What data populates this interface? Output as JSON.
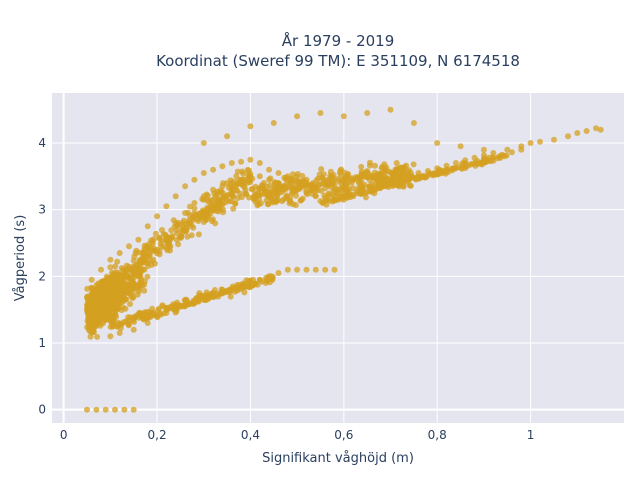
{
  "chart_data": {
    "type": "scatter",
    "title_line1": "År 1979 - 2019",
    "title_line2": "Koordinat (Sweref 99 TM): E 351109, N 6174518",
    "xlabel": "Signifikant våghöjd (m)",
    "ylabel": "Vågperiod (s)",
    "xlim": [
      -0.025,
      1.2
    ],
    "ylim": [
      -0.2,
      4.75
    ],
    "x_ticks": [
      0,
      0.2,
      0.4,
      0.6,
      0.8,
      1.0
    ],
    "x_tick_labels": [
      "0",
      "0,2",
      "0,4",
      "0,6",
      "0,8",
      "1"
    ],
    "y_ticks": [
      0,
      1,
      2,
      3,
      4
    ],
    "y_tick_labels": [
      "0",
      "1",
      "2",
      "3",
      "4"
    ],
    "grid": true,
    "legend": "none",
    "colors": {
      "marker": "#d4a020",
      "plot_bg": "#e5e5f0",
      "grid": "#ffffff",
      "text": "#2a3f5f"
    },
    "series": [
      {
        "points": [
          [
            0.05,
            1.52
          ],
          [
            0.06,
            1.6
          ],
          [
            0.07,
            1.75
          ],
          [
            0.06,
            1.95
          ],
          [
            0.08,
            2.1
          ],
          [
            0.1,
            2.25
          ],
          [
            0.12,
            2.35
          ],
          [
            0.14,
            2.45
          ],
          [
            0.16,
            2.55
          ],
          [
            0.18,
            2.75
          ],
          [
            0.2,
            2.9
          ],
          [
            0.22,
            3.05
          ],
          [
            0.24,
            3.2
          ],
          [
            0.26,
            3.35
          ],
          [
            0.28,
            3.45
          ],
          [
            0.3,
            3.55
          ],
          [
            0.32,
            3.6
          ],
          [
            0.34,
            3.65
          ],
          [
            0.36,
            3.7
          ],
          [
            0.38,
            3.72
          ],
          [
            0.4,
            3.75
          ],
          [
            0.42,
            3.7
          ],
          [
            0.44,
            3.6
          ],
          [
            0.46,
            3.55
          ],
          [
            0.48,
            3.5
          ],
          [
            0.5,
            3.45
          ],
          [
            0.52,
            3.4
          ],
          [
            0.54,
            3.35
          ],
          [
            0.56,
            3.32
          ],
          [
            0.58,
            3.3
          ],
          [
            0.6,
            3.3
          ],
          [
            0.62,
            3.32
          ],
          [
            0.64,
            3.35
          ],
          [
            0.66,
            3.38
          ],
          [
            0.68,
            3.42
          ],
          [
            0.7,
            3.45
          ],
          [
            0.72,
            3.48
          ],
          [
            0.74,
            3.52
          ],
          [
            0.76,
            3.55
          ],
          [
            0.78,
            3.58
          ],
          [
            0.8,
            3.62
          ],
          [
            0.82,
            3.66
          ],
          [
            0.84,
            3.7
          ],
          [
            0.86,
            3.74
          ],
          [
            0.88,
            3.78
          ],
          [
            0.9,
            3.82
          ],
          [
            0.92,
            3.85
          ],
          [
            0.95,
            3.9
          ],
          [
            0.98,
            3.95
          ],
          [
            1.0,
            4.0
          ],
          [
            1.05,
            4.05
          ],
          [
            1.1,
            4.15
          ],
          [
            1.15,
            4.2
          ],
          [
            0.3,
            4.0
          ],
          [
            0.35,
            4.1
          ],
          [
            0.4,
            4.25
          ],
          [
            0.45,
            4.3
          ],
          [
            0.5,
            4.4
          ],
          [
            0.55,
            4.45
          ],
          [
            0.6,
            4.4
          ],
          [
            0.65,
            4.45
          ],
          [
            0.7,
            4.5
          ],
          [
            0.75,
            4.3
          ],
          [
            0.8,
            4.0
          ],
          [
            0.85,
            3.95
          ],
          [
            0.9,
            3.9
          ],
          [
            0.1,
            1.1
          ],
          [
            0.12,
            1.15
          ],
          [
            0.15,
            1.2
          ],
          [
            0.18,
            1.3
          ],
          [
            0.2,
            1.4
          ],
          [
            0.22,
            1.45
          ],
          [
            0.24,
            1.5
          ],
          [
            0.26,
            1.55
          ],
          [
            0.28,
            1.6
          ],
          [
            0.3,
            1.65
          ],
          [
            0.32,
            1.7
          ],
          [
            0.34,
            1.75
          ],
          [
            0.36,
            1.8
          ],
          [
            0.38,
            1.85
          ],
          [
            0.4,
            1.9
          ],
          [
            0.42,
            1.95
          ],
          [
            0.44,
            2.0
          ],
          [
            0.46,
            2.05
          ],
          [
            0.48,
            2.1
          ],
          [
            0.5,
            2.1
          ],
          [
            0.52,
            2.1
          ],
          [
            0.54,
            2.1
          ],
          [
            0.56,
            2.1
          ],
          [
            0.58,
            2.1
          ],
          [
            0.05,
            0.0
          ],
          [
            0.07,
            0.0
          ],
          [
            0.09,
            0.0
          ],
          [
            0.11,
            0.0
          ],
          [
            0.13,
            0.0
          ],
          [
            0.15,
            0.0
          ],
          [
            0.14,
            1.8
          ],
          [
            0.16,
            2.0
          ],
          [
            0.18,
            2.2
          ],
          [
            0.2,
            2.4
          ],
          [
            0.22,
            2.6
          ],
          [
            0.24,
            2.8
          ],
          [
            0.26,
            2.95
          ],
          [
            0.28,
            3.1
          ],
          [
            0.3,
            3.2
          ],
          [
            0.32,
            3.3
          ],
          [
            0.34,
            3.35
          ],
          [
            0.36,
            3.4
          ],
          [
            0.38,
            3.45
          ],
          [
            0.4,
            3.5
          ],
          [
            0.42,
            3.5
          ],
          [
            0.44,
            3.45
          ],
          [
            0.46,
            3.4
          ],
          [
            0.48,
            3.35
          ],
          [
            0.5,
            3.3
          ],
          [
            0.52,
            3.25
          ],
          [
            0.54,
            3.2
          ],
          [
            0.56,
            3.18
          ],
          [
            0.58,
            3.15
          ],
          [
            0.6,
            3.15
          ],
          [
            0.62,
            3.2
          ],
          [
            0.64,
            3.25
          ],
          [
            0.66,
            3.3
          ],
          [
            0.68,
            3.35
          ],
          [
            0.7,
            3.4
          ],
          [
            0.72,
            3.42
          ],
          [
            0.74,
            3.45
          ],
          [
            0.76,
            3.5
          ],
          [
            0.78,
            3.52
          ],
          [
            0.8,
            3.55
          ],
          [
            0.82,
            3.6
          ],
          [
            0.84,
            3.62
          ],
          [
            0.86,
            3.65
          ],
          [
            0.88,
            3.7
          ],
          [
            0.9,
            3.75
          ],
          [
            0.92,
            3.78
          ],
          [
            0.94,
            3.82
          ],
          [
            0.96,
            3.86
          ],
          [
            0.98,
            3.9
          ],
          [
            1.02,
            4.02
          ],
          [
            1.08,
            4.1
          ],
          [
            1.12,
            4.18
          ],
          [
            1.14,
            4.22
          ]
        ],
        "cloud_count": 1800
      }
    ]
  }
}
